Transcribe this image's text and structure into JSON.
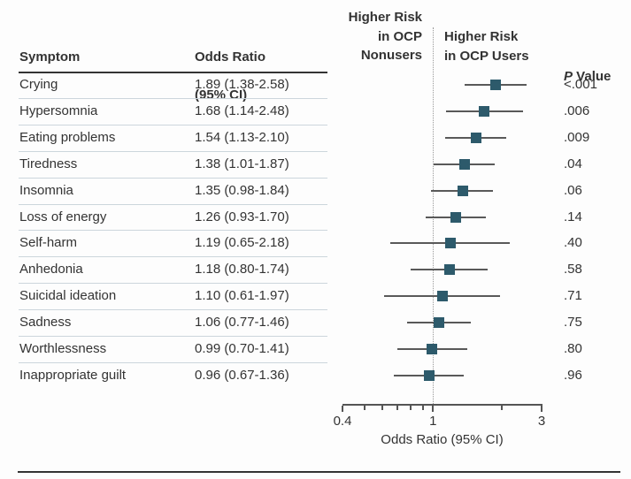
{
  "chart_data": {
    "type": "forest",
    "table_headers": {
      "symptom": "Symptom",
      "or_line1": "Odds Ratio",
      "or_line2": "(95% CI)",
      "p_italic": "P",
      "p_rest": " Value"
    },
    "region_labels": {
      "nonusers": "Higher Risk\nin OCP\nNonusers",
      "users": "Higher Risk\nin OCP Users"
    },
    "rows": [
      {
        "symptom": "Crying",
        "or": 1.89,
        "ci_low": 1.38,
        "ci_high": 2.58,
        "or_text": "1.89 (1.38-2.58)",
        "p_value": "<.001"
      },
      {
        "symptom": "Hypersomnia",
        "or": 1.68,
        "ci_low": 1.14,
        "ci_high": 2.48,
        "or_text": "1.68 (1.14-2.48)",
        "p_value": ".006"
      },
      {
        "symptom": "Eating problems",
        "or": 1.54,
        "ci_low": 1.13,
        "ci_high": 2.1,
        "or_text": "1.54 (1.13-2.10)",
        "p_value": ".009"
      },
      {
        "symptom": "Tiredness",
        "or": 1.38,
        "ci_low": 1.01,
        "ci_high": 1.87,
        "or_text": "1.38 (1.01-1.87)",
        "p_value": ".04"
      },
      {
        "symptom": "Insomnia",
        "or": 1.35,
        "ci_low": 0.98,
        "ci_high": 1.84,
        "or_text": "1.35 (0.98-1.84)",
        "p_value": ".06"
      },
      {
        "symptom": "Loss of energy",
        "or": 1.26,
        "ci_low": 0.93,
        "ci_high": 1.7,
        "or_text": "1.26 (0.93-1.70)",
        "p_value": ".14"
      },
      {
        "symptom": "Self-harm",
        "or": 1.19,
        "ci_low": 0.65,
        "ci_high": 2.18,
        "or_text": "1.19 (0.65-2.18)",
        "p_value": ".40"
      },
      {
        "symptom": "Anhedonia",
        "or": 1.18,
        "ci_low": 0.8,
        "ci_high": 1.74,
        "or_text": "1.18 (0.80-1.74)",
        "p_value": ".58"
      },
      {
        "symptom": "Suicidal ideation",
        "or": 1.1,
        "ci_low": 0.61,
        "ci_high": 1.97,
        "or_text": "1.10 (0.61-1.97)",
        "p_value": ".71"
      },
      {
        "symptom": "Sadness",
        "or": 1.06,
        "ci_low": 0.77,
        "ci_high": 1.46,
        "or_text": "1.06 (0.77-1.46)",
        "p_value": ".75"
      },
      {
        "symptom": "Worthlessness",
        "or": 0.99,
        "ci_low": 0.7,
        "ci_high": 1.41,
        "or_text": "0.99 (0.70-1.41)",
        "p_value": ".80"
      },
      {
        "symptom": "Inappropriate guilt",
        "or": 0.96,
        "ci_low": 0.67,
        "ci_high": 1.36,
        "or_text": "0.96 (0.67-1.36)",
        "p_value": ".96"
      }
    ],
    "x_axis": {
      "scale": "log",
      "min": 0.4,
      "max": 3,
      "tick_values": [
        0.4,
        0.5,
        0.6,
        0.7,
        0.8,
        0.9,
        1,
        2,
        3
      ],
      "labeled_tick_values": [
        0.4,
        1,
        3
      ],
      "labeled_tick_texts": [
        "0.4",
        "1",
        "3"
      ],
      "label": "Odds Ratio (95% CI)",
      "reference_line": 1
    }
  },
  "colors": {
    "marker": "#2d5a6b",
    "ci_line": "#595959",
    "axis": "#555555",
    "separator": "#ccd6dc",
    "rule": "#333333",
    "text": "#333333",
    "reference_dotted": "#999999",
    "background": "#fdfdfd"
  }
}
